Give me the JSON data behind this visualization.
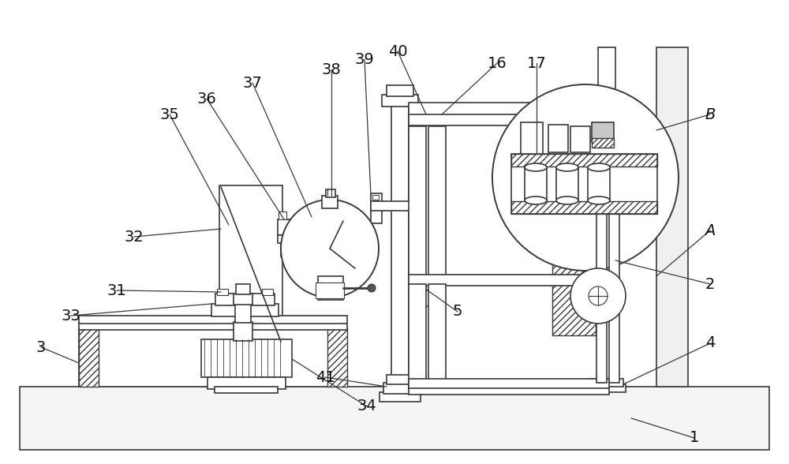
{
  "bg_color": "#ffffff",
  "line_color": "#3a3a3a",
  "fig_width": 10.0,
  "fig_height": 5.88,
  "dpi": 100,
  "label_fontsize": 14,
  "lw": 1.2
}
